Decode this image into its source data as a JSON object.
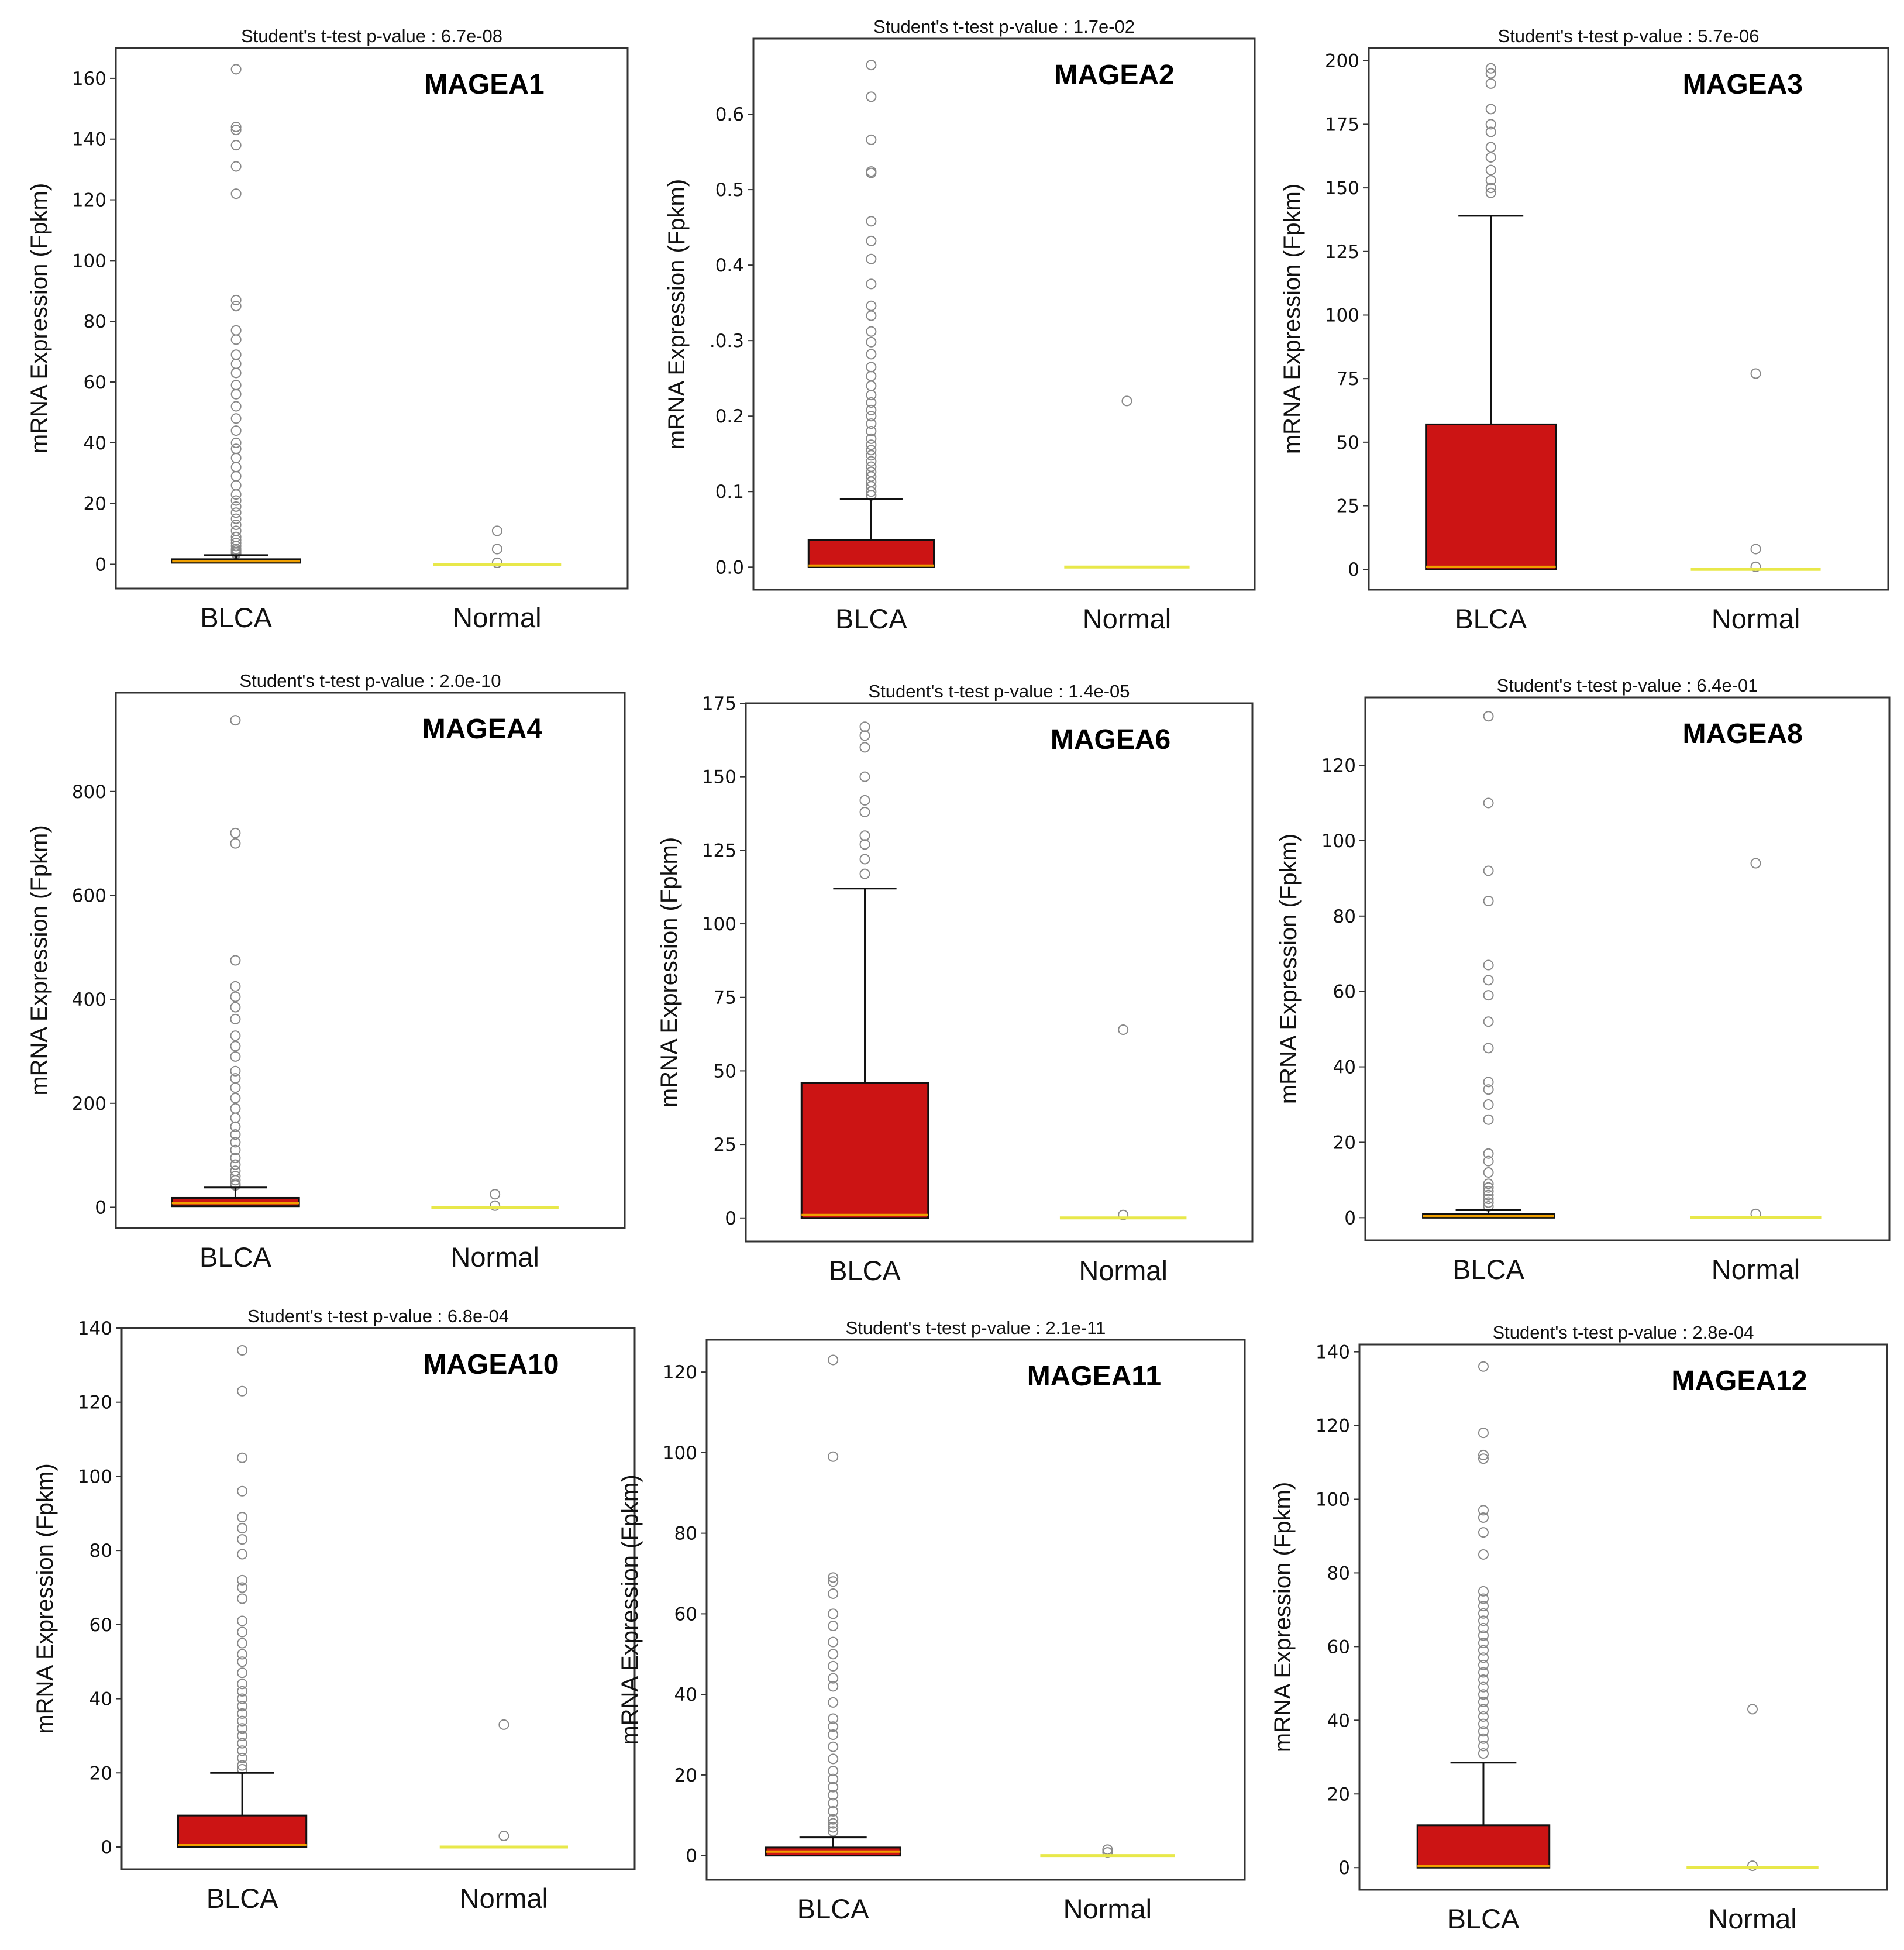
{
  "chart_data": [
    {
      "type": "box",
      "gene": "MAGEA1",
      "title": "Student's t-test p-value : 6.7e-08",
      "ylabel": "mRNA Expression (Fpkm)",
      "categories": [
        "BLCA",
        "Normal"
      ],
      "ylim": [
        -8,
        170
      ],
      "yticks": [
        0,
        20,
        40,
        60,
        80,
        100,
        120,
        140,
        160
      ],
      "yticklabels": [
        "0",
        "20",
        "40",
        "60",
        "80",
        "100",
        "120",
        "140",
        "160"
      ],
      "boxes": [
        {
          "name": "BLCA",
          "min": 0,
          "q1": 0.5,
          "median": 1,
          "q3": 1.5,
          "whisker_high": 3,
          "outliers": [
            163,
            144,
            143,
            138,
            131,
            122,
            87,
            85,
            77,
            74,
            69,
            66,
            63,
            59,
            56,
            52,
            48,
            44,
            40,
            38,
            35,
            32,
            29,
            26,
            23,
            21,
            19,
            17,
            15,
            13,
            11,
            9,
            8,
            7,
            6,
            5,
            4.5,
            4,
            3.5
          ]
        },
        {
          "name": "Normal",
          "min": 0,
          "q1": 0,
          "median": 0,
          "q3": 0,
          "whisker_high": 0,
          "outliers": [
            11,
            5,
            0.5
          ]
        }
      ]
    },
    {
      "type": "box",
      "gene": "MAGEA2",
      "title": "Student's t-test p-value : 1.7e-02",
      "ylabel": "mRNA Expression (Fpkm)",
      "categories": [
        "BLCA",
        "Normal"
      ],
      "ylim": [
        -0.03,
        0.7
      ],
      "yticks": [
        0.0,
        0.1,
        0.2,
        0.3,
        0.4,
        0.5,
        0.6
      ],
      "yticklabels": [
        "0.0",
        "0.1",
        "0.2",
        ".0.3",
        "0.4",
        "0.5",
        "0.6"
      ],
      "boxes": [
        {
          "name": "BLCA",
          "min": 0,
          "q1": 0.0,
          "median": 0.002,
          "q3": 0.036,
          "whisker_high": 0.09,
          "outliers": [
            0.665,
            0.623,
            0.566,
            0.524,
            0.522,
            0.458,
            0.432,
            0.408,
            0.375,
            0.346,
            0.333,
            0.312,
            0.298,
            0.282,
            0.265,
            0.253,
            0.24,
            0.228,
            0.218,
            0.208,
            0.2,
            0.19,
            0.18,
            0.17,
            0.162,
            0.155,
            0.148,
            0.14,
            0.133,
            0.126,
            0.12,
            0.113,
            0.107,
            0.1,
            0.095
          ]
        },
        {
          "name": "Normal",
          "min": 0,
          "q1": 0,
          "median": 0,
          "q3": 0,
          "whisker_high": 0,
          "outliers": [
            0.22
          ]
        }
      ]
    },
    {
      "type": "box",
      "gene": "MAGEA3",
      "title": "Student's t-test p-value : 5.7e-06",
      "ylabel": "mRNA Expression (Fpkm)",
      "categories": [
        "BLCA",
        "Normal"
      ],
      "ylim": [
        -8,
        205
      ],
      "yticks": [
        0,
        25,
        50,
        75,
        100,
        125,
        150,
        175,
        200
      ],
      "yticklabels": [
        "0",
        "25",
        "50",
        "75",
        "100",
        "125",
        "150",
        "175",
        "200"
      ],
      "boxes": [
        {
          "name": "BLCA",
          "min": 0,
          "q1": 0,
          "median": 1,
          "q3": 57,
          "whisker_high": 139,
          "outliers": [
            197,
            195,
            191,
            181,
            175,
            172,
            166,
            162,
            157,
            153,
            150,
            148
          ]
        },
        {
          "name": "Normal",
          "min": 0,
          "q1": 0,
          "median": 0,
          "q3": 0,
          "whisker_high": 0,
          "outliers": [
            77,
            8,
            1
          ]
        }
      ]
    },
    {
      "type": "box",
      "gene": "MAGEA4",
      "title": "Student's t-test p-value : 2.0e-10",
      "ylabel": "mRNA Expression (Fpkm)",
      "categories": [
        "BLCA",
        "Normal"
      ],
      "ylim": [
        -40,
        990
      ],
      "yticks": [
        0,
        200,
        400,
        600,
        800
      ],
      "yticklabels": [
        "0",
        "200",
        "400",
        "600",
        "800"
      ],
      "boxes": [
        {
          "name": "BLCA",
          "min": 0,
          "q1": 2,
          "median": 8,
          "q3": 18,
          "whisker_high": 38,
          "outliers": [
            937,
            720,
            700,
            475,
            425,
            405,
            385,
            362,
            330,
            310,
            290,
            262,
            248,
            230,
            210,
            190,
            172,
            155,
            140,
            125,
            110,
            95,
            82,
            70,
            60,
            52,
            45,
            42
          ]
        },
        {
          "name": "Normal",
          "min": 0,
          "q1": 0,
          "median": 0,
          "q3": 0,
          "whisker_high": 0,
          "outliers": [
            25,
            3
          ]
        }
      ]
    },
    {
      "type": "box",
      "gene": "MAGEA6",
      "title": "Student's t-test p-value : 1.4e-05",
      "ylabel": "mRNA Expression (Fpkm)",
      "categories": [
        "BLCA",
        "Normal"
      ],
      "ylim": [
        -8,
        175
      ],
      "yticks": [
        0,
        25,
        50,
        75,
        100,
        125,
        150,
        175
      ],
      "yticklabels": [
        "0",
        "25",
        "50",
        "75",
        "100",
        "125",
        "150",
        "175"
      ],
      "boxes": [
        {
          "name": "BLCA",
          "min": 0,
          "q1": 0,
          "median": 1,
          "q3": 46,
          "whisker_high": 112,
          "outliers": [
            167,
            164,
            160,
            150,
            142,
            138,
            130,
            127,
            122,
            117
          ]
        },
        {
          "name": "Normal",
          "min": 0,
          "q1": 0,
          "median": 0,
          "q3": 0,
          "whisker_high": 0,
          "outliers": [
            64,
            1
          ]
        }
      ]
    },
    {
      "type": "box",
      "gene": "MAGEA8",
      "title": "Student's t-test p-value : 6.4e-01",
      "ylabel": "mRNA Expression (Fpkm)",
      "categories": [
        "BLCA",
        "Normal"
      ],
      "ylim": [
        -6,
        138
      ],
      "yticks": [
        0,
        20,
        40,
        60,
        80,
        100,
        120
      ],
      "yticklabels": [
        "0",
        "20",
        "40",
        "60",
        "80",
        "100",
        "120"
      ],
      "boxes": [
        {
          "name": "BLCA",
          "min": 0,
          "q1": 0,
          "median": 0.5,
          "q3": 1,
          "whisker_high": 2,
          "outliers": [
            133,
            110,
            92,
            84,
            67,
            63,
            59,
            52,
            45,
            36,
            34,
            30,
            26,
            17,
            15,
            12,
            9,
            8,
            7,
            6,
            5,
            4,
            3
          ]
        },
        {
          "name": "Normal",
          "min": 0,
          "q1": 0,
          "median": 0,
          "q3": 0,
          "whisker_high": 0,
          "outliers": [
            94,
            1
          ]
        }
      ]
    },
    {
      "type": "box",
      "gene": "MAGEA10",
      "title": "Student's t-test p-value : 6.8e-04",
      "ylabel": "mRNA Expression (Fpkm)",
      "categories": [
        "BLCA",
        "Normal"
      ],
      "ylim": [
        -6,
        140
      ],
      "yticks": [
        0,
        20,
        40,
        60,
        80,
        100,
        120,
        140
      ],
      "yticklabels": [
        "0",
        "20",
        "40",
        "60",
        "80",
        "100",
        "120",
        "140"
      ],
      "boxes": [
        {
          "name": "BLCA",
          "min": 0,
          "q1": 0,
          "median": 0.5,
          "q3": 8.5,
          "whisker_high": 20,
          "outliers": [
            134,
            123,
            105,
            96,
            89,
            86,
            83,
            79,
            72,
            70,
            67,
            61,
            58,
            55,
            52,
            50,
            47,
            44,
            42,
            40,
            38,
            36,
            34,
            32,
            30,
            28,
            26,
            24,
            22,
            21
          ]
        },
        {
          "name": "Normal",
          "min": 0,
          "q1": 0,
          "median": 0,
          "q3": 0,
          "whisker_high": 0,
          "outliers": [
            33,
            3
          ]
        }
      ]
    },
    {
      "type": "box",
      "gene": "MAGEA11",
      "title": "Student's t-test p-value : 2.1e-11",
      "ylabel": "mRNA Expression (Fpkm)",
      "categories": [
        "BLCA",
        "Normal"
      ],
      "ylim": [
        -6,
        128
      ],
      "yticks": [
        0,
        20,
        40,
        60,
        80,
        100,
        120
      ],
      "yticklabels": [
        "0",
        "20",
        "40",
        "60",
        "80",
        "100",
        "120"
      ],
      "boxes": [
        {
          "name": "BLCA",
          "min": 0,
          "q1": 0,
          "median": 1,
          "q3": 2,
          "whisker_high": 4.5,
          "outliers": [
            123,
            99,
            69,
            68,
            65,
            60,
            57,
            53,
            50,
            47,
            44,
            42,
            38,
            34,
            32,
            30,
            27,
            24,
            21,
            19,
            17,
            15,
            13,
            11,
            9,
            8,
            7,
            6
          ]
        },
        {
          "name": "Normal",
          "min": 0,
          "q1": 0,
          "median": 0,
          "q3": 0,
          "whisker_high": 0,
          "outliers": [
            1.5,
            0.8
          ]
        }
      ]
    },
    {
      "type": "box",
      "gene": "MAGEA12",
      "title": "Student's t-test p-value : 2.8e-04",
      "ylabel": "mRNA Expression (Fpkm)",
      "categories": [
        "BLCA",
        "Normal"
      ],
      "ylim": [
        -6,
        142
      ],
      "yticks": [
        0,
        20,
        40,
        60,
        80,
        100,
        120,
        140
      ],
      "yticklabels": [
        "0",
        "20",
        "40",
        "60",
        "80",
        "100",
        "120",
        "140"
      ],
      "boxes": [
        {
          "name": "BLCA",
          "min": 0,
          "q1": 0,
          "median": 0.5,
          "q3": 11.5,
          "whisker_high": 28.5,
          "outliers": [
            136,
            118,
            112,
            111,
            97,
            95,
            91,
            85,
            75,
            73,
            71,
            69,
            67,
            65,
            63,
            61,
            59,
            57,
            55,
            53,
            51,
            49,
            47,
            45,
            43,
            41,
            39,
            37,
            35,
            33,
            31
          ]
        },
        {
          "name": "Normal",
          "min": 0,
          "q1": 0,
          "median": 0,
          "q3": 0,
          "whisker_high": 0,
          "outliers": [
            43,
            0.5
          ]
        }
      ]
    }
  ],
  "colors": {
    "blca_box": "#cc1414",
    "blca_median": "#f0a000",
    "normal_line": "#e8e84a",
    "outlier": "#888888",
    "axis": "#333333"
  }
}
